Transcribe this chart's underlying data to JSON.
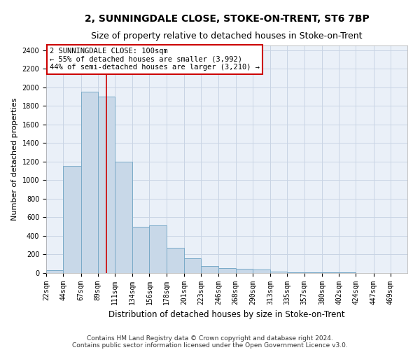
{
  "title": "2, SUNNINGDALE CLOSE, STOKE-ON-TRENT, ST6 7BP",
  "subtitle": "Size of property relative to detached houses in Stoke-on-Trent",
  "xlabel": "Distribution of detached houses by size in Stoke-on-Trent",
  "ylabel": "Number of detached properties",
  "bin_labels": [
    "22sqm",
    "44sqm",
    "67sqm",
    "89sqm",
    "111sqm",
    "134sqm",
    "156sqm",
    "178sqm",
    "201sqm",
    "223sqm",
    "246sqm",
    "268sqm",
    "290sqm",
    "313sqm",
    "335sqm",
    "357sqm",
    "380sqm",
    "402sqm",
    "424sqm",
    "447sqm",
    "469sqm"
  ],
  "bin_edges": [
    22,
    44,
    67,
    89,
    111,
    134,
    156,
    178,
    201,
    223,
    246,
    268,
    290,
    313,
    335,
    357,
    380,
    402,
    424,
    447,
    469
  ],
  "bar_heights": [
    30,
    1150,
    1950,
    1900,
    1200,
    500,
    510,
    270,
    160,
    75,
    55,
    45,
    35,
    15,
    10,
    8,
    5,
    5,
    3,
    3,
    3
  ],
  "bar_color": "#c8d8e8",
  "bar_edge_color": "#7aaac8",
  "property_size": 100,
  "red_line_color": "#cc0000",
  "annotation_text": "2 SUNNINGDALE CLOSE: 100sqm\n← 55% of detached houses are smaller (3,992)\n44% of semi-detached houses are larger (3,210) →",
  "annotation_box_color": "#ffffff",
  "annotation_border_color": "#cc0000",
  "ylim": [
    0,
    2450
  ],
  "yticks": [
    0,
    200,
    400,
    600,
    800,
    1000,
    1200,
    1400,
    1600,
    1800,
    2000,
    2200,
    2400
  ],
  "grid_color": "#c8d4e4",
  "background_color": "#eaf0f8",
  "footer_line1": "Contains HM Land Registry data © Crown copyright and database right 2024.",
  "footer_line2": "Contains public sector information licensed under the Open Government Licence v3.0.",
  "title_fontsize": 10,
  "subtitle_fontsize": 9,
  "xlabel_fontsize": 8.5,
  "ylabel_fontsize": 8,
  "tick_fontsize": 7,
  "annotation_fontsize": 7.5,
  "footer_fontsize": 6.5
}
